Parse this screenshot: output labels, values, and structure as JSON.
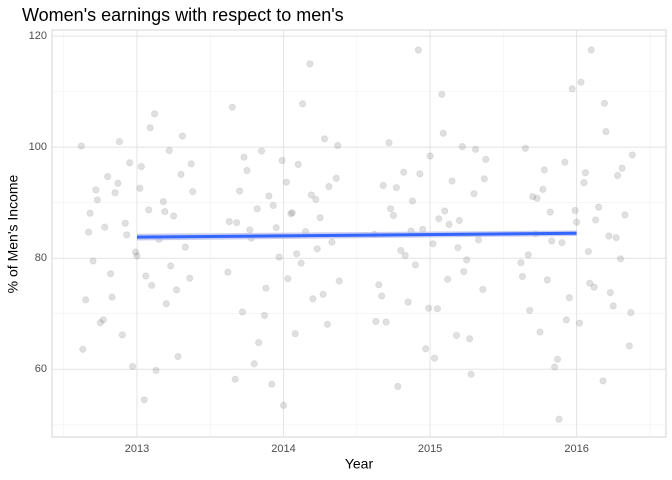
{
  "chart_data": {
    "type": "scatter",
    "title": "Women's earnings with respect to men's",
    "x_label": "Year",
    "y_label": "% of Men's Income",
    "xlim": [
      2012.42,
      2016.61
    ],
    "xticks": [
      2013,
      2014,
      2015,
      2016
    ],
    "x_minor_grid": [
      2012.5,
      2013.5,
      2014.5,
      2015.5,
      2016.5
    ],
    "ylim": [
      47.8,
      121.1
    ],
    "yticks": [
      60,
      80,
      100,
      120
    ],
    "y_minor_grid": [
      50,
      70,
      90,
      110
    ],
    "grid": true,
    "series": [
      {
        "color": "#555555",
        "x": [
          2012.62,
          2012.65,
          2012.68,
          2012.7,
          2012.72,
          2012.75,
          2012.78,
          2012.8,
          2012.82,
          2012.85,
          2012.88,
          2012.9,
          2012.92,
          2012.95,
          2012.97,
          2013.0,
          2013.02,
          2013.05,
          2013.08,
          2013.1,
          2013.12,
          2013.15,
          2013.18,
          2013.2,
          2013.22,
          2013.25,
          2013.28,
          2013.3,
          2013.33,
          2013.36,
          2013.38,
          2012.63,
          2012.73,
          2012.83,
          2012.93,
          2013.03,
          2013.13,
          2013.23,
          2013.31,
          2012.67,
          2012.77,
          2012.87,
          2012.99,
          2013.09,
          2013.19,
          2013.27,
          2013.37,
          2013.06,
          2013.62,
          2013.65,
          2013.68,
          2013.7,
          2013.72,
          2013.75,
          2013.78,
          2013.8,
          2013.82,
          2013.85,
          2013.88,
          2013.9,
          2013.92,
          2013.95,
          2013.97,
          2014.0,
          2014.02,
          2014.05,
          2014.08,
          2014.1,
          2014.12,
          2014.15,
          2014.18,
          2014.2,
          2014.22,
          2014.25,
          2014.28,
          2014.3,
          2014.33,
          2014.36,
          2014.38,
          2013.63,
          2013.73,
          2013.83,
          2013.93,
          2014.03,
          2014.13,
          2014.23,
          2014.31,
          2013.67,
          2013.77,
          2013.87,
          2013.99,
          2014.09,
          2014.19,
          2014.27,
          2014.37,
          2014.06,
          2014.62,
          2014.65,
          2014.68,
          2014.7,
          2014.72,
          2014.75,
          2014.78,
          2014.8,
          2014.82,
          2014.85,
          2014.88,
          2014.9,
          2014.92,
          2014.95,
          2014.97,
          2015.0,
          2015.02,
          2015.05,
          2015.08,
          2015.1,
          2015.12,
          2015.15,
          2015.18,
          2015.2,
          2015.22,
          2015.25,
          2015.28,
          2015.3,
          2015.33,
          2015.36,
          2015.38,
          2014.63,
          2014.73,
          2014.83,
          2014.93,
          2015.03,
          2015.13,
          2015.23,
          2015.31,
          2014.67,
          2014.77,
          2014.87,
          2014.99,
          2015.09,
          2015.19,
          2015.27,
          2015.37,
          2015.06,
          2015.62,
          2015.65,
          2015.68,
          2015.7,
          2015.72,
          2015.75,
          2015.78,
          2015.8,
          2015.82,
          2015.85,
          2015.88,
          2015.9,
          2015.92,
          2015.95,
          2015.97,
          2016.0,
          2016.02,
          2016.05,
          2016.08,
          2016.1,
          2016.12,
          2016.15,
          2016.18,
          2016.2,
          2016.22,
          2016.25,
          2016.28,
          2016.3,
          2016.33,
          2016.36,
          2016.38,
          2015.63,
          2015.73,
          2015.83,
          2015.93,
          2016.03,
          2016.13,
          2016.23,
          2016.31,
          2015.67,
          2015.77,
          2015.87,
          2015.99,
          2016.09,
          2016.19,
          2016.27,
          2016.37,
          2016.06
        ],
        "values": [
          100.2,
          72.5,
          88.1,
          79.5,
          92.3,
          68.4,
          85.6,
          94.7,
          77.2,
          91.8,
          101,
          66.2,
          86.3,
          97.2,
          60.5,
          80.4,
          92.6,
          54.5,
          88.7,
          75.1,
          106,
          83.4,
          90.2,
          71.8,
          99.4,
          87.6,
          62.3,
          95.1,
          82,
          76.4,
          92,
          63.6,
          90.5,
          73,
          84.2,
          96.5,
          59.8,
          78.6,
          102,
          84.7,
          68.9,
          93.5,
          81.1,
          103.5,
          88.4,
          74.3,
          97,
          76.8,
          77.5,
          107.2,
          86.4,
          92.1,
          70.3,
          95.8,
          83.6,
          61,
          88.9,
          99.3,
          74.6,
          91.2,
          57.3,
          85.5,
          80.2,
          53.5,
          93.7,
          88,
          66.4,
          96.9,
          79.1,
          84.8,
          115,
          72.7,
          90.6,
          87.3,
          101.5,
          68.1,
          82.9,
          94.4,
          75.9,
          86.6,
          98.2,
          64.8,
          89.5,
          76.3,
          107.8,
          81.7,
          92.9,
          58.2,
          85.1,
          69.7,
          97.6,
          80.8,
          91.4,
          73.5,
          100.3,
          88.2,
          84.3,
          75.2,
          93.1,
          68.5,
          100.8,
          87.7,
          56.9,
          81.4,
          95.5,
          72.1,
          90.3,
          78.8,
          117.5,
          85.2,
          63.7,
          98.4,
          82.6,
          70.9,
          109.5,
          88.5,
          76.2,
          93.9,
          66.1,
          86.8,
          100.1,
          79.7,
          59.1,
          91.6,
          83.3,
          74.4,
          97.8,
          68.6,
          88.9,
          80.5,
          95.2,
          62,
          86.1,
          77.6,
          99.6,
          73.2,
          92.7,
          84.9,
          71,
          102.5,
          81.9,
          65.5,
          94.3,
          87.1,
          79.2,
          99.8,
          70.6,
          91.1,
          84.4,
          66.7,
          95.9,
          76.1,
          88.3,
          60.4,
          51,
          82.8,
          97.3,
          72.9,
          110.5,
          86.5,
          68.3,
          93.6,
          81.2,
          117.5,
          74.8,
          89.2,
          57.9,
          102.8,
          84,
          71.4,
          94.9,
          79.9,
          87.8,
          64.2,
          98.6,
          76.7,
          90.8,
          83.1,
          68.9,
          111.7,
          86.9,
          73.8,
          96.2,
          80.6,
          92.4,
          61.8,
          88.6,
          75.5,
          107.9,
          83.7,
          70.2,
          95.4
        ]
      }
    ],
    "trend": {
      "color": "#3366ff",
      "band_color": "#b0b8e8",
      "x": [
        2013,
        2016
      ],
      "values": [
        83.8,
        84.5
      ],
      "band_lower": [
        83.2,
        84.0
      ],
      "band_upper": [
        84.4,
        85.0
      ]
    }
  }
}
